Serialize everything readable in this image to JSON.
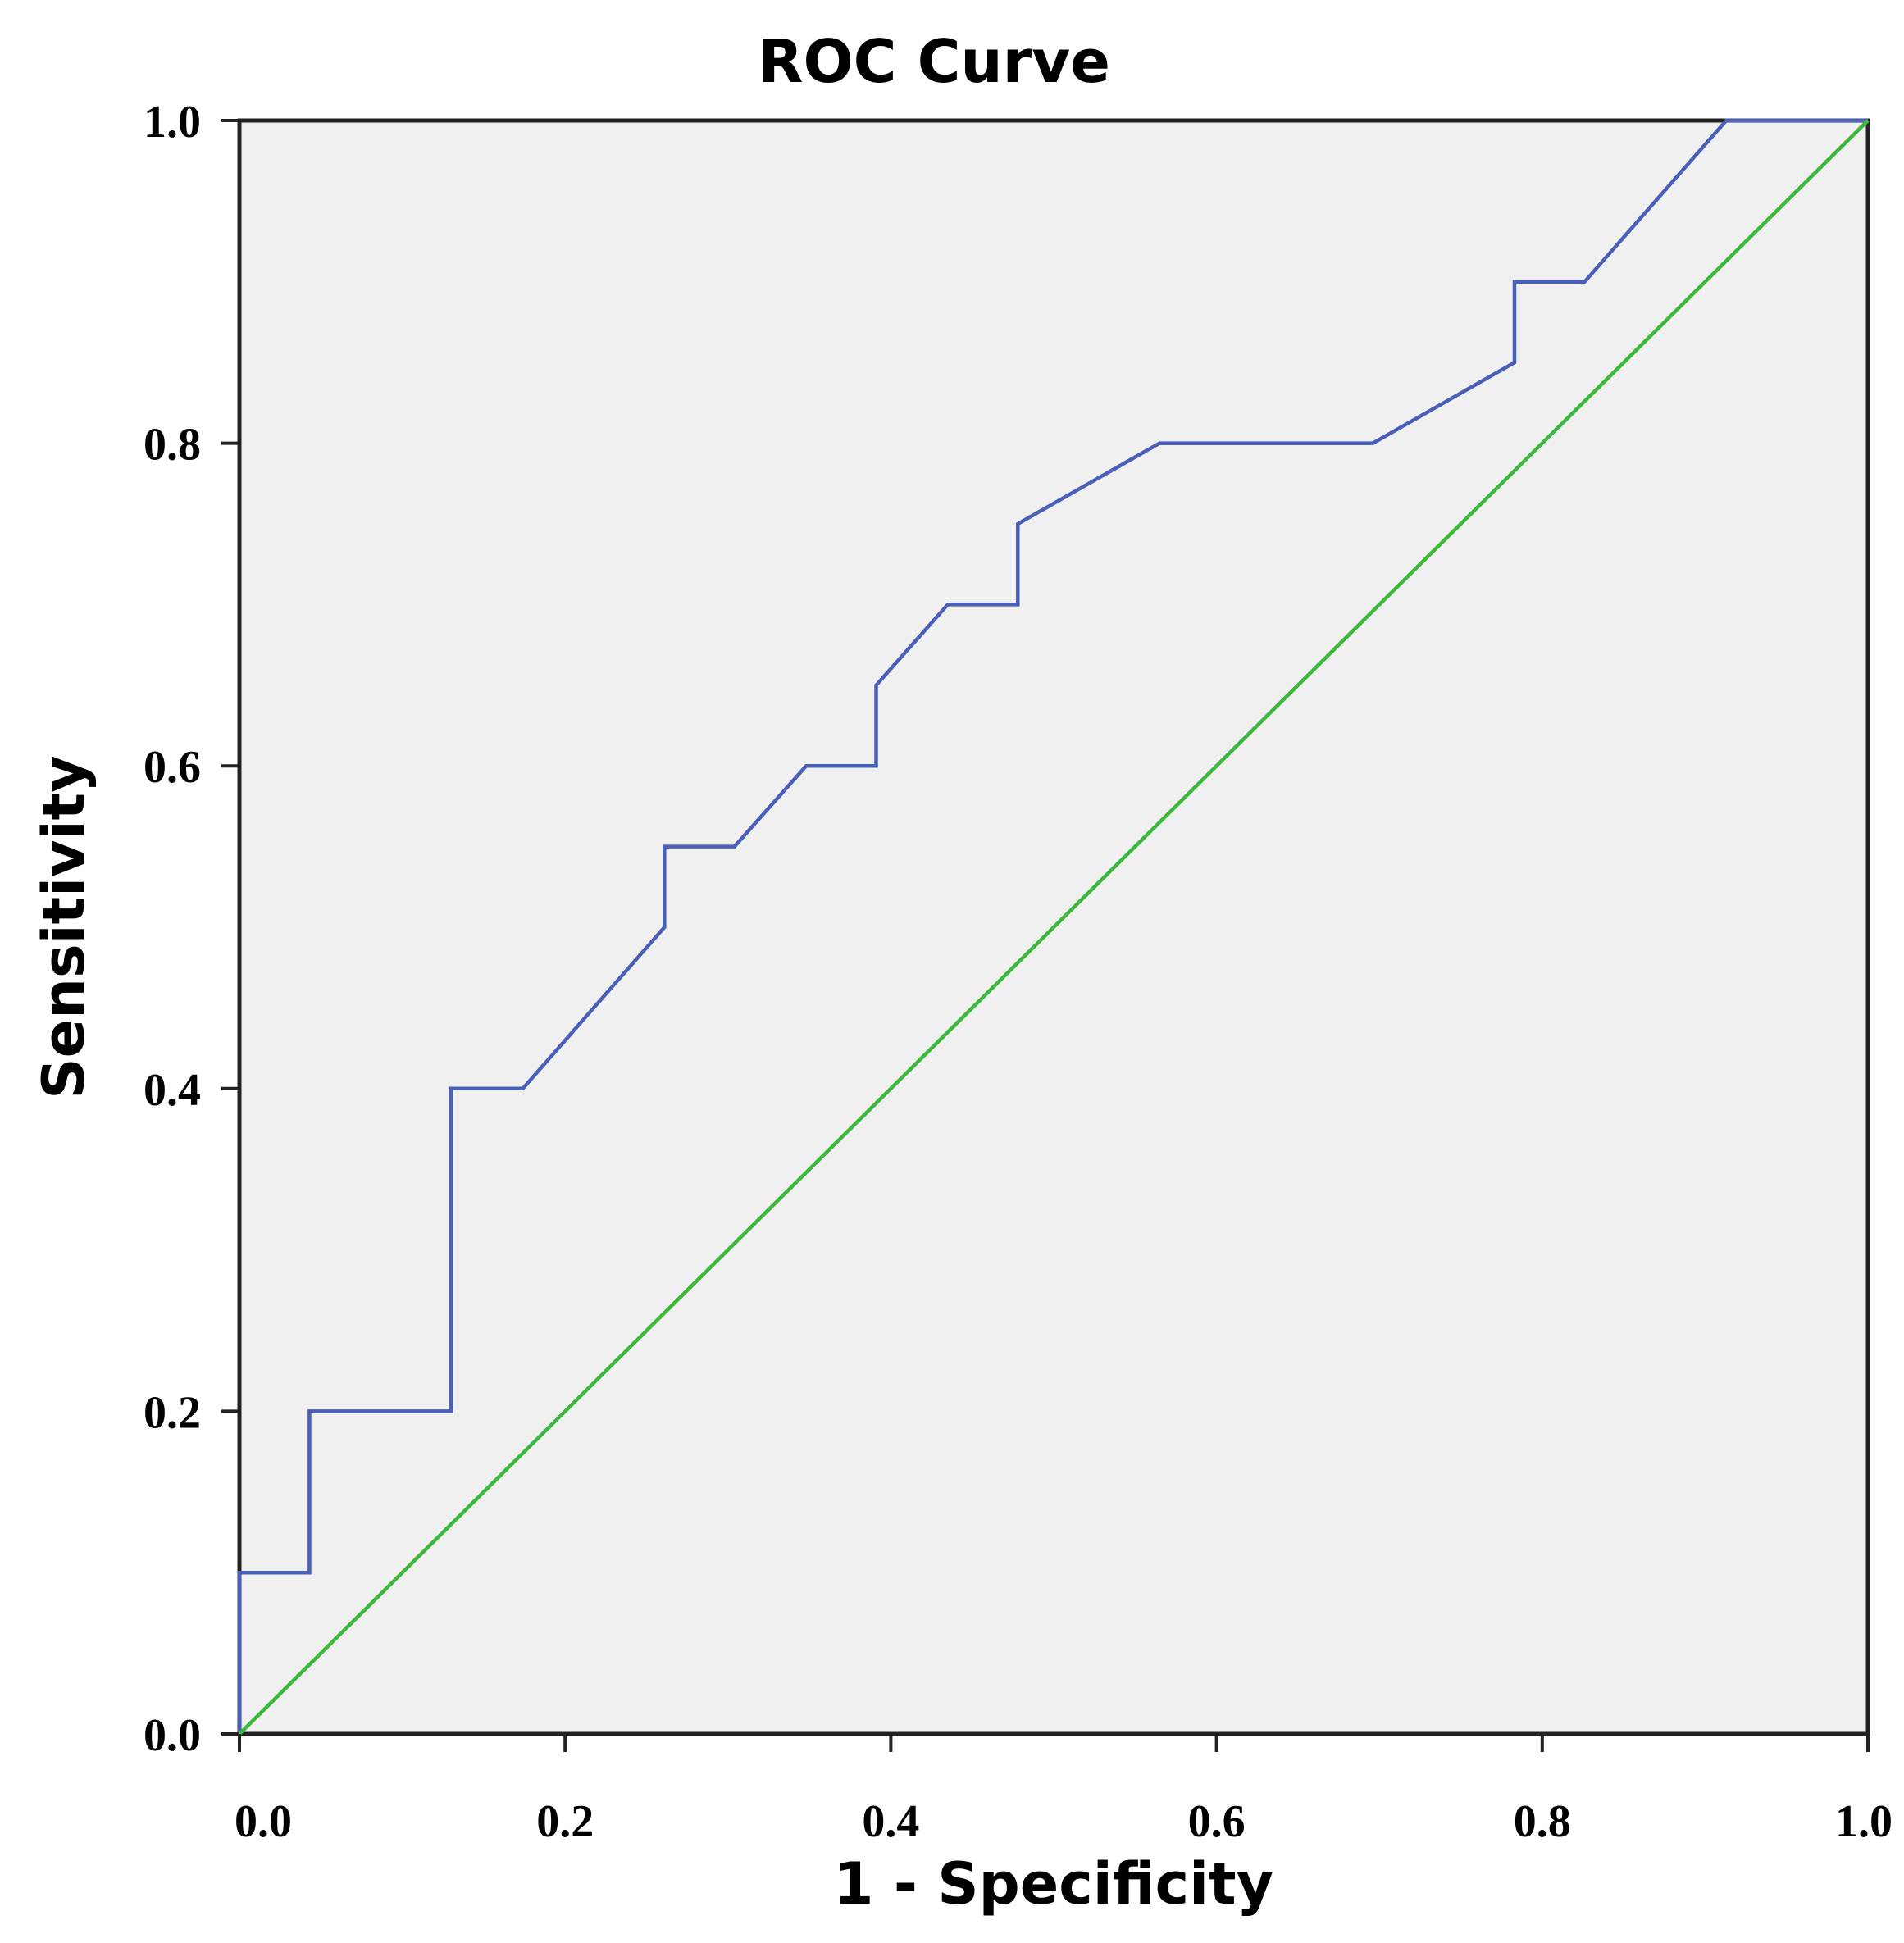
{
  "chart_data": {
    "type": "line",
    "title": "ROC Curve",
    "xlabel": "1 - Specificity",
    "ylabel": "Sensitivity",
    "xlim": [
      0,
      1
    ],
    "ylim": [
      0,
      1
    ],
    "x_ticks": [
      "0.0",
      "0.2",
      "0.4",
      "0.6",
      "0.8",
      "1.0"
    ],
    "y_ticks": [
      "0.0",
      "0.2",
      "0.4",
      "0.6",
      "0.8",
      "1.0"
    ],
    "grid": false,
    "legend": "none",
    "plot_background": "#f0f0f0",
    "series": [
      {
        "color": "#4a5fb8",
        "points": [
          [
            0.0,
            0.0
          ],
          [
            0.0,
            0.1
          ],
          [
            0.043,
            0.1
          ],
          [
            0.043,
            0.2
          ],
          [
            0.13,
            0.2
          ],
          [
            0.13,
            0.4
          ],
          [
            0.174,
            0.4
          ],
          [
            0.261,
            0.5
          ],
          [
            0.261,
            0.55
          ],
          [
            0.304,
            0.55
          ],
          [
            0.348,
            0.6
          ],
          [
            0.391,
            0.6
          ],
          [
            0.391,
            0.65
          ],
          [
            0.435,
            0.7
          ],
          [
            0.478,
            0.7
          ],
          [
            0.478,
            0.75
          ],
          [
            0.565,
            0.8
          ],
          [
            0.696,
            0.8
          ],
          [
            0.783,
            0.85
          ],
          [
            0.783,
            0.9
          ],
          [
            0.826,
            0.9
          ],
          [
            0.913,
            1.0
          ],
          [
            1.0,
            1.0
          ]
        ]
      },
      {
        "color": "#3cb83c",
        "points": [
          [
            0.0,
            0.0
          ],
          [
            1.0,
            1.0
          ]
        ]
      }
    ]
  }
}
